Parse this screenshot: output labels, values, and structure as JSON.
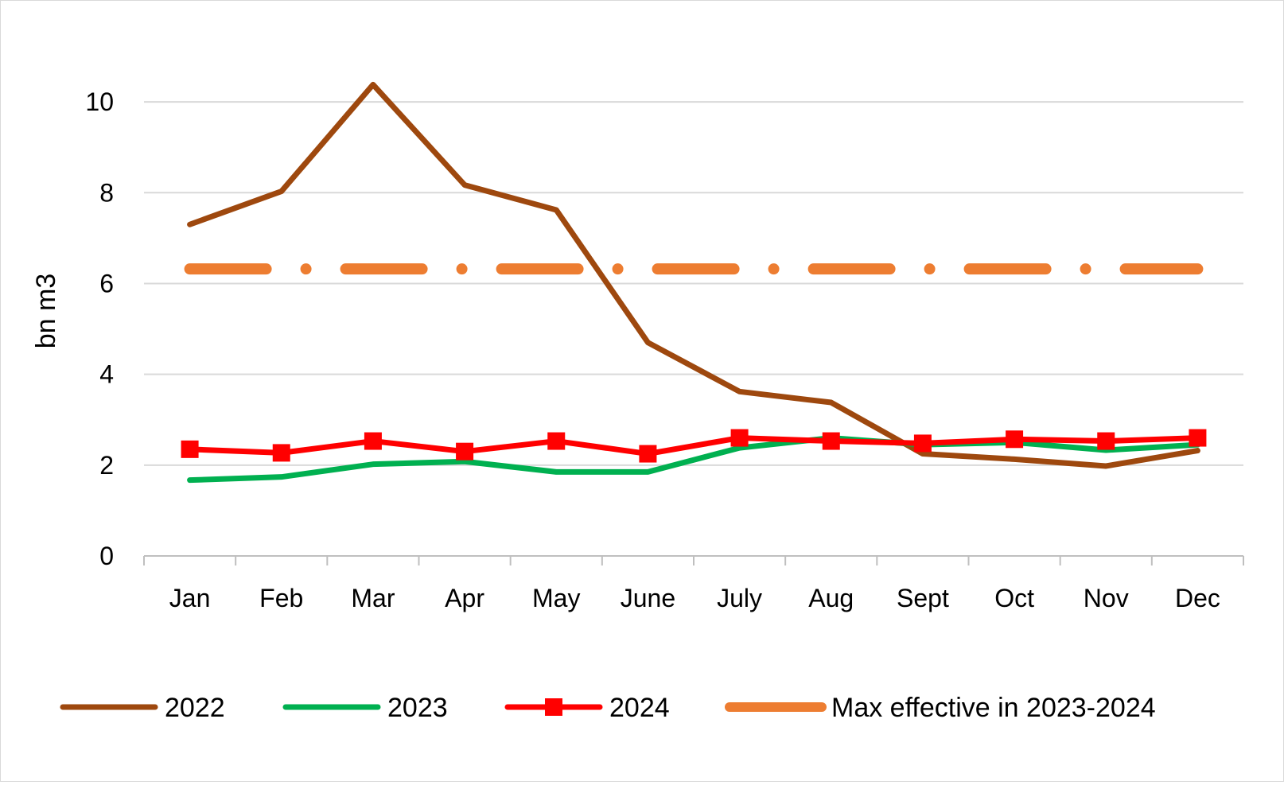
{
  "chart_data": {
    "type": "line",
    "title": "",
    "xlabel": "",
    "ylabel": "bn m3",
    "ylim": [
      0,
      10.5
    ],
    "yticks": [
      0,
      2,
      4,
      6,
      8,
      10
    ],
    "grid": true,
    "legend_position": "bottom",
    "categories": [
      "Jan",
      "Feb",
      "Mar",
      "Apr",
      "May",
      "June",
      "July",
      "Aug",
      "Sept",
      "Oct",
      "Nov",
      "Dec"
    ],
    "series": [
      {
        "name": "2022",
        "color": "#9E480E",
        "style": "solid",
        "marker": "none",
        "values": [
          7.3,
          8.03,
          10.38,
          8.17,
          7.62,
          4.7,
          3.62,
          3.38,
          2.25,
          2.13,
          1.98,
          2.32
        ]
      },
      {
        "name": "2023",
        "color": "#00B050",
        "style": "solid",
        "marker": "none",
        "values": [
          1.67,
          1.74,
          2.02,
          2.08,
          1.85,
          1.85,
          2.38,
          2.6,
          2.45,
          2.5,
          2.33,
          2.45
        ]
      },
      {
        "name": "2024",
        "color": "#FF0000",
        "style": "solid",
        "marker": "square",
        "values": [
          2.35,
          2.27,
          2.53,
          2.3,
          2.53,
          2.25,
          2.6,
          2.53,
          2.48,
          2.57,
          2.53,
          2.6
        ]
      },
      {
        "name": "Max effective in 2023-2024",
        "color": "#ED7D31",
        "style": "dash-dot",
        "marker": "none",
        "values": [
          6.32,
          6.32,
          6.32,
          6.32,
          6.32,
          6.32,
          6.32,
          6.32,
          6.32,
          6.32,
          6.32,
          6.32
        ]
      }
    ]
  }
}
